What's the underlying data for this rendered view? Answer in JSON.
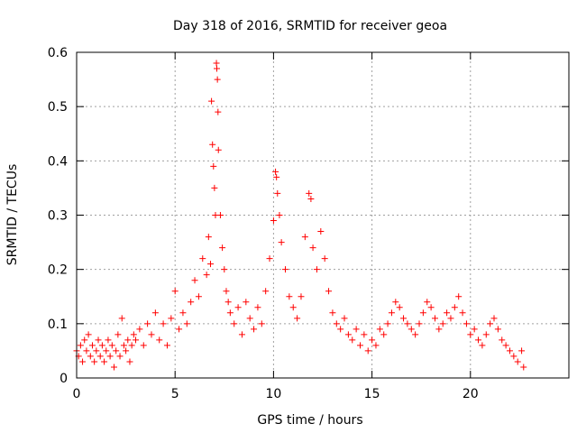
{
  "chart_data": {
    "type": "scatter",
    "title": "Day 318 of 2016, SRMTID for receiver geoa",
    "xlabel": "GPS time / hours",
    "ylabel": "SRMTID / TECUs",
    "xlim": [
      0,
      25
    ],
    "ylim": [
      0,
      0.6
    ],
    "xticks": [
      0,
      5,
      10,
      15,
      20
    ],
    "xtick_labels": [
      "0",
      "5",
      "10",
      "15",
      "20"
    ],
    "yticks": [
      0,
      0.1,
      0.2,
      0.3,
      0.4,
      0.5,
      0.6
    ],
    "ytick_labels": [
      "0",
      "0.1",
      "0.2",
      "0.3",
      "0.4",
      "0.5",
      "0.6"
    ],
    "grid": true,
    "marker": "+",
    "series": [
      {
        "name": "SRMTID",
        "color": "#ff0000",
        "points": [
          [
            0.0,
            0.05
          ],
          [
            0.1,
            0.04
          ],
          [
            0.2,
            0.06
          ],
          [
            0.3,
            0.03
          ],
          [
            0.4,
            0.07
          ],
          [
            0.5,
            0.05
          ],
          [
            0.6,
            0.08
          ],
          [
            0.7,
            0.04
          ],
          [
            0.8,
            0.06
          ],
          [
            0.9,
            0.03
          ],
          [
            1.0,
            0.05
          ],
          [
            1.1,
            0.07
          ],
          [
            1.2,
            0.04
          ],
          [
            1.3,
            0.06
          ],
          [
            1.4,
            0.03
          ],
          [
            1.5,
            0.05
          ],
          [
            1.6,
            0.07
          ],
          [
            1.7,
            0.04
          ],
          [
            1.8,
            0.06
          ],
          [
            1.9,
            0.02
          ],
          [
            2.0,
            0.05
          ],
          [
            2.1,
            0.08
          ],
          [
            2.2,
            0.04
          ],
          [
            2.3,
            0.11
          ],
          [
            2.4,
            0.06
          ],
          [
            2.5,
            0.05
          ],
          [
            2.6,
            0.07
          ],
          [
            2.7,
            0.03
          ],
          [
            2.8,
            0.06
          ],
          [
            2.9,
            0.08
          ],
          [
            3.0,
            0.07
          ],
          [
            3.2,
            0.09
          ],
          [
            3.4,
            0.06
          ],
          [
            3.6,
            0.1
          ],
          [
            3.8,
            0.08
          ],
          [
            4.0,
            0.12
          ],
          [
            4.2,
            0.07
          ],
          [
            4.4,
            0.1
          ],
          [
            4.6,
            0.06
          ],
          [
            4.8,
            0.11
          ],
          [
            5.0,
            0.16
          ],
          [
            5.2,
            0.09
          ],
          [
            5.4,
            0.12
          ],
          [
            5.6,
            0.1
          ],
          [
            5.8,
            0.14
          ],
          [
            6.0,
            0.18
          ],
          [
            6.2,
            0.15
          ],
          [
            6.4,
            0.22
          ],
          [
            6.6,
            0.19
          ],
          [
            6.7,
            0.26
          ],
          [
            6.8,
            0.21
          ],
          [
            6.85,
            0.51
          ],
          [
            6.9,
            0.43
          ],
          [
            6.95,
            0.39
          ],
          [
            7.0,
            0.35
          ],
          [
            7.05,
            0.3
          ],
          [
            7.1,
            0.58
          ],
          [
            7.12,
            0.57
          ],
          [
            7.15,
            0.55
          ],
          [
            7.18,
            0.49
          ],
          [
            7.2,
            0.42
          ],
          [
            7.3,
            0.3
          ],
          [
            7.4,
            0.24
          ],
          [
            7.5,
            0.2
          ],
          [
            7.6,
            0.16
          ],
          [
            7.7,
            0.14
          ],
          [
            7.8,
            0.12
          ],
          [
            8.0,
            0.1
          ],
          [
            8.2,
            0.13
          ],
          [
            8.4,
            0.08
          ],
          [
            8.6,
            0.14
          ],
          [
            8.8,
            0.11
          ],
          [
            9.0,
            0.09
          ],
          [
            9.2,
            0.13
          ],
          [
            9.4,
            0.1
          ],
          [
            9.6,
            0.16
          ],
          [
            9.8,
            0.22
          ],
          [
            10.0,
            0.29
          ],
          [
            10.1,
            0.38
          ],
          [
            10.15,
            0.37
          ],
          [
            10.2,
            0.34
          ],
          [
            10.3,
            0.3
          ],
          [
            10.4,
            0.25
          ],
          [
            10.6,
            0.2
          ],
          [
            10.8,
            0.15
          ],
          [
            11.0,
            0.13
          ],
          [
            11.2,
            0.11
          ],
          [
            11.4,
            0.15
          ],
          [
            11.6,
            0.26
          ],
          [
            11.8,
            0.34
          ],
          [
            11.9,
            0.33
          ],
          [
            12.0,
            0.24
          ],
          [
            12.2,
            0.2
          ],
          [
            12.4,
            0.27
          ],
          [
            12.6,
            0.22
          ],
          [
            12.8,
            0.16
          ],
          [
            13.0,
            0.12
          ],
          [
            13.2,
            0.1
          ],
          [
            13.4,
            0.09
          ],
          [
            13.6,
            0.11
          ],
          [
            13.8,
            0.08
          ],
          [
            14.0,
            0.07
          ],
          [
            14.2,
            0.09
          ],
          [
            14.4,
            0.06
          ],
          [
            14.6,
            0.08
          ],
          [
            14.8,
            0.05
          ],
          [
            15.0,
            0.07
          ],
          [
            15.2,
            0.06
          ],
          [
            15.4,
            0.09
          ],
          [
            15.6,
            0.08
          ],
          [
            15.8,
            0.1
          ],
          [
            16.0,
            0.12
          ],
          [
            16.2,
            0.14
          ],
          [
            16.4,
            0.13
          ],
          [
            16.6,
            0.11
          ],
          [
            16.8,
            0.1
          ],
          [
            17.0,
            0.09
          ],
          [
            17.2,
            0.08
          ],
          [
            17.4,
            0.1
          ],
          [
            17.6,
            0.12
          ],
          [
            17.8,
            0.14
          ],
          [
            18.0,
            0.13
          ],
          [
            18.2,
            0.11
          ],
          [
            18.4,
            0.09
          ],
          [
            18.6,
            0.1
          ],
          [
            18.8,
            0.12
          ],
          [
            19.0,
            0.11
          ],
          [
            19.2,
            0.13
          ],
          [
            19.4,
            0.15
          ],
          [
            19.6,
            0.12
          ],
          [
            19.8,
            0.1
          ],
          [
            20.0,
            0.08
          ],
          [
            20.2,
            0.09
          ],
          [
            20.4,
            0.07
          ],
          [
            20.6,
            0.06
          ],
          [
            20.8,
            0.08
          ],
          [
            21.0,
            0.1
          ],
          [
            21.2,
            0.11
          ],
          [
            21.4,
            0.09
          ],
          [
            21.6,
            0.07
          ],
          [
            21.8,
            0.06
          ],
          [
            22.0,
            0.05
          ],
          [
            22.2,
            0.04
          ],
          [
            22.4,
            0.03
          ],
          [
            22.6,
            0.05
          ],
          [
            22.7,
            0.02
          ]
        ]
      }
    ]
  }
}
